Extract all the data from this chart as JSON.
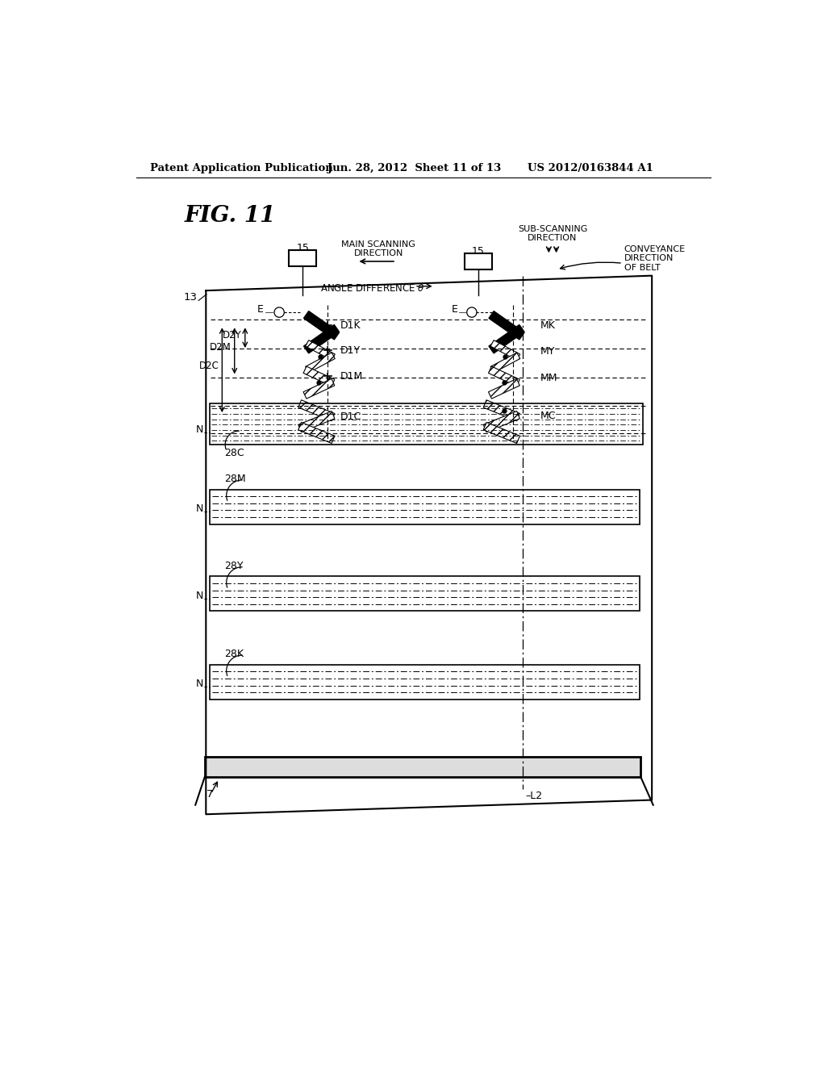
{
  "bg_color": "#ffffff",
  "header_left": "Patent Application Publication",
  "header_mid": "Jun. 28, 2012  Sheet 11 of 13",
  "header_right": "US 2012/0163844 A1",
  "fig_label": "FIG. 11"
}
